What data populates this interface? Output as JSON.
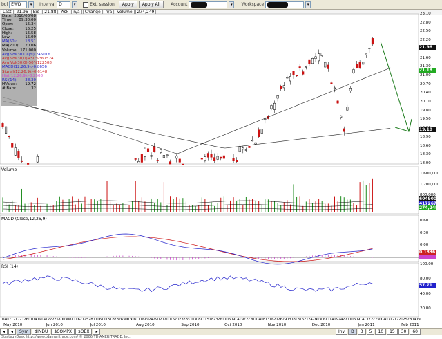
{
  "toolbar": {
    "symbol_label": "bol",
    "symbol_value": "EWD",
    "interval_label": "Interval",
    "interval_value": "D",
    "ext_session_label": "Ext. session",
    "apply_label": "Apply",
    "apply_all_label": "Apply All",
    "account_label": "Account",
    "workspace_label": "Workspace",
    "quote": {
      "last_label": "Last",
      "last": "21.96",
      "bid_label": "Bid",
      "bid": "21.88",
      "ask_label": "Ask",
      "ask_value": "n/a",
      "change_label": "Change",
      "change": "n/a",
      "volume_label": "Volume",
      "volume": "274,249"
    }
  },
  "info_panel": [
    {
      "label": "Date:",
      "value": "2010/06/08"
    },
    {
      "label": "Time:",
      "value": "09:30:00"
    },
    {
      "label": "Open:",
      "value": "15.34"
    },
    {
      "label": "Close:",
      "value": "15.25"
    },
    {
      "label": "High:",
      "value": "15.58"
    },
    {
      "label": "Low:",
      "value": "15.09"
    },
    {
      "label": "MA(50):",
      "value": "18.51",
      "color": "#2222cc"
    },
    {
      "label": "MA(200):",
      "value": "20.06"
    },
    {
      "label": "Volume:",
      "value": "171,000"
    },
    {
      "label": "Avg Vol(30 Days):",
      "value": "245016",
      "color": "#2222cc"
    },
    {
      "label": "Avg Vol(30,0)+50%",
      "value": "367524",
      "color": "#cc2222"
    },
    {
      "label": "Avg Vol(30,0)-50%",
      "value": "122508",
      "color": "#cc2222"
    },
    {
      "label": "MACD(12,26,9):",
      "value": "-0.8656",
      "color": "#2222cc"
    },
    {
      "label": "Signal(12,26,9):",
      "value": "-0.6148",
      "color": "#cc2222"
    },
    {
      "label": "Hist(12,26,9):",
      "value": "-0.2508",
      "color": "#cc44cc"
    },
    {
      "label": "RSI(14):",
      "value": "38.30",
      "color": "#2222cc"
    },
    {
      "label": "HValue:",
      "value": "19.72"
    },
    {
      "label": "# Bars:",
      "value": "32"
    }
  ],
  "price_panel": {
    "ticks": [
      "23.10",
      "22.80",
      "22.50",
      "22.20",
      "21.90",
      "21.60",
      "21.30",
      "21.00",
      "20.70",
      "20.40",
      "20.10",
      "19.80",
      "19.50",
      "19.20",
      "18.90",
      "18.60",
      "18.30",
      "18.00"
    ],
    "badges": [
      {
        "value": "21.96",
        "color": "#111111"
      },
      {
        "value": "21.18",
        "color": "#22aa22"
      },
      {
        "value": "19.10",
        "color": "#111111"
      }
    ]
  },
  "volume_panel": {
    "label": "Volume",
    "ticks": [
      "1,600,000",
      "1,200,000",
      "800,000"
    ],
    "badges": [
      {
        "value": "604900",
        "color": "#111111"
      },
      {
        "value": "417267",
        "color": "#2222cc"
      },
      {
        "value": "274,249",
        "color": "#22aa22"
      }
    ]
  },
  "macd_panel": {
    "label": "MACD (Close,12,26,9)",
    "ticks": [
      "0.60",
      "0.30",
      "0.00",
      "-0.30"
    ],
    "badges": [
      {
        "value": "0.1836",
        "color": "#cc2222"
      },
      {
        "value": "",
        "color": "#cc44cc"
      }
    ]
  },
  "rsi_panel": {
    "label": "RSI (14)",
    "ticks": [
      "100.00",
      "80.00",
      "40.00",
      "20.00"
    ],
    "badges": [
      {
        "value": "57.71",
        "color": "#2222cc"
      }
    ]
  },
  "date_axis": {
    "days": [
      "04",
      "07",
      "12",
      "17",
      "21",
      "26",
      "01",
      "04",
      "09",
      "14",
      "17",
      "22",
      "25",
      "30",
      "03",
      "08",
      "11",
      "16",
      "21",
      "25",
      "28",
      "01",
      "06",
      "11",
      "15",
      "18",
      "23",
      "26",
      "30",
      "03",
      "08",
      "11",
      "16",
      "19",
      "24",
      "29",
      "02",
      "07",
      "10",
      "15",
      "20",
      "23",
      "28",
      "31",
      "03",
      "08",
      "11",
      "15",
      "18",
      "23",
      "26",
      "01",
      "06",
      "09",
      "14",
      "19",
      "22",
      "27",
      "01",
      "04",
      "08",
      "13",
      "16",
      "21",
      "26",
      "29",
      "03",
      "08",
      "13",
      "16",
      "21",
      "24",
      "28",
      "03",
      "06",
      "11",
      "14",
      "19",
      "24",
      "27",
      "01",
      "06",
      "09",
      "14",
      "17",
      "22",
      "27",
      "30",
      "04",
      "07",
      "12",
      "17",
      "20",
      "25",
      "28",
      "04",
      "09"
    ],
    "months": [
      {
        "label": "May 2010",
        "pos": 0.008
      },
      {
        "label": "Jun 2010",
        "pos": 0.104
      },
      {
        "label": "Jul 2010",
        "pos": 0.204
      },
      {
        "label": "Aug 2010",
        "pos": 0.308
      },
      {
        "label": "Sep 2010",
        "pos": 0.41
      },
      {
        "label": "Oct 2010",
        "pos": 0.508
      },
      {
        "label": "Nov 2010",
        "pos": 0.606
      },
      {
        "label": "Dec 2010",
        "pos": 0.706
      },
      {
        "label": "Jan 2011",
        "pos": 0.81
      },
      {
        "label": "Feb 2011",
        "pos": 0.908
      }
    ]
  },
  "bottom_bar": {
    "tabs": [
      "Sym",
      "$INDU",
      "$COMPX",
      "$OEX"
    ],
    "right_tabs": [
      "Inv",
      "D",
      "3",
      "5",
      "10",
      "15",
      "30",
      "60"
    ]
  },
  "footer_text": "StrategyDesk http://www.tdameritrade.com/  © 2006 TD AMERITRADE, Inc."
}
